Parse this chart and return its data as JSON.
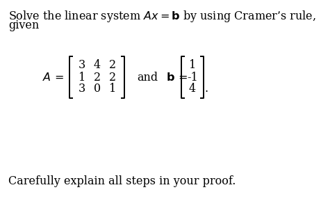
{
  "background_color": "#ffffff",
  "line1": "Solve the linear system $Ax = \\mathbf{b}$ by using Cramer’s rule,",
  "line2": "given",
  "matrix_A": [
    [
      3,
      4,
      2
    ],
    [
      1,
      2,
      2
    ],
    [
      3,
      0,
      1
    ]
  ],
  "matrix_b": [
    1,
    -1,
    4
  ],
  "bottom_text": "Carefully explain all steps in your proof.",
  "font_size_body": 11.5,
  "font_size_matrix": 11.5
}
